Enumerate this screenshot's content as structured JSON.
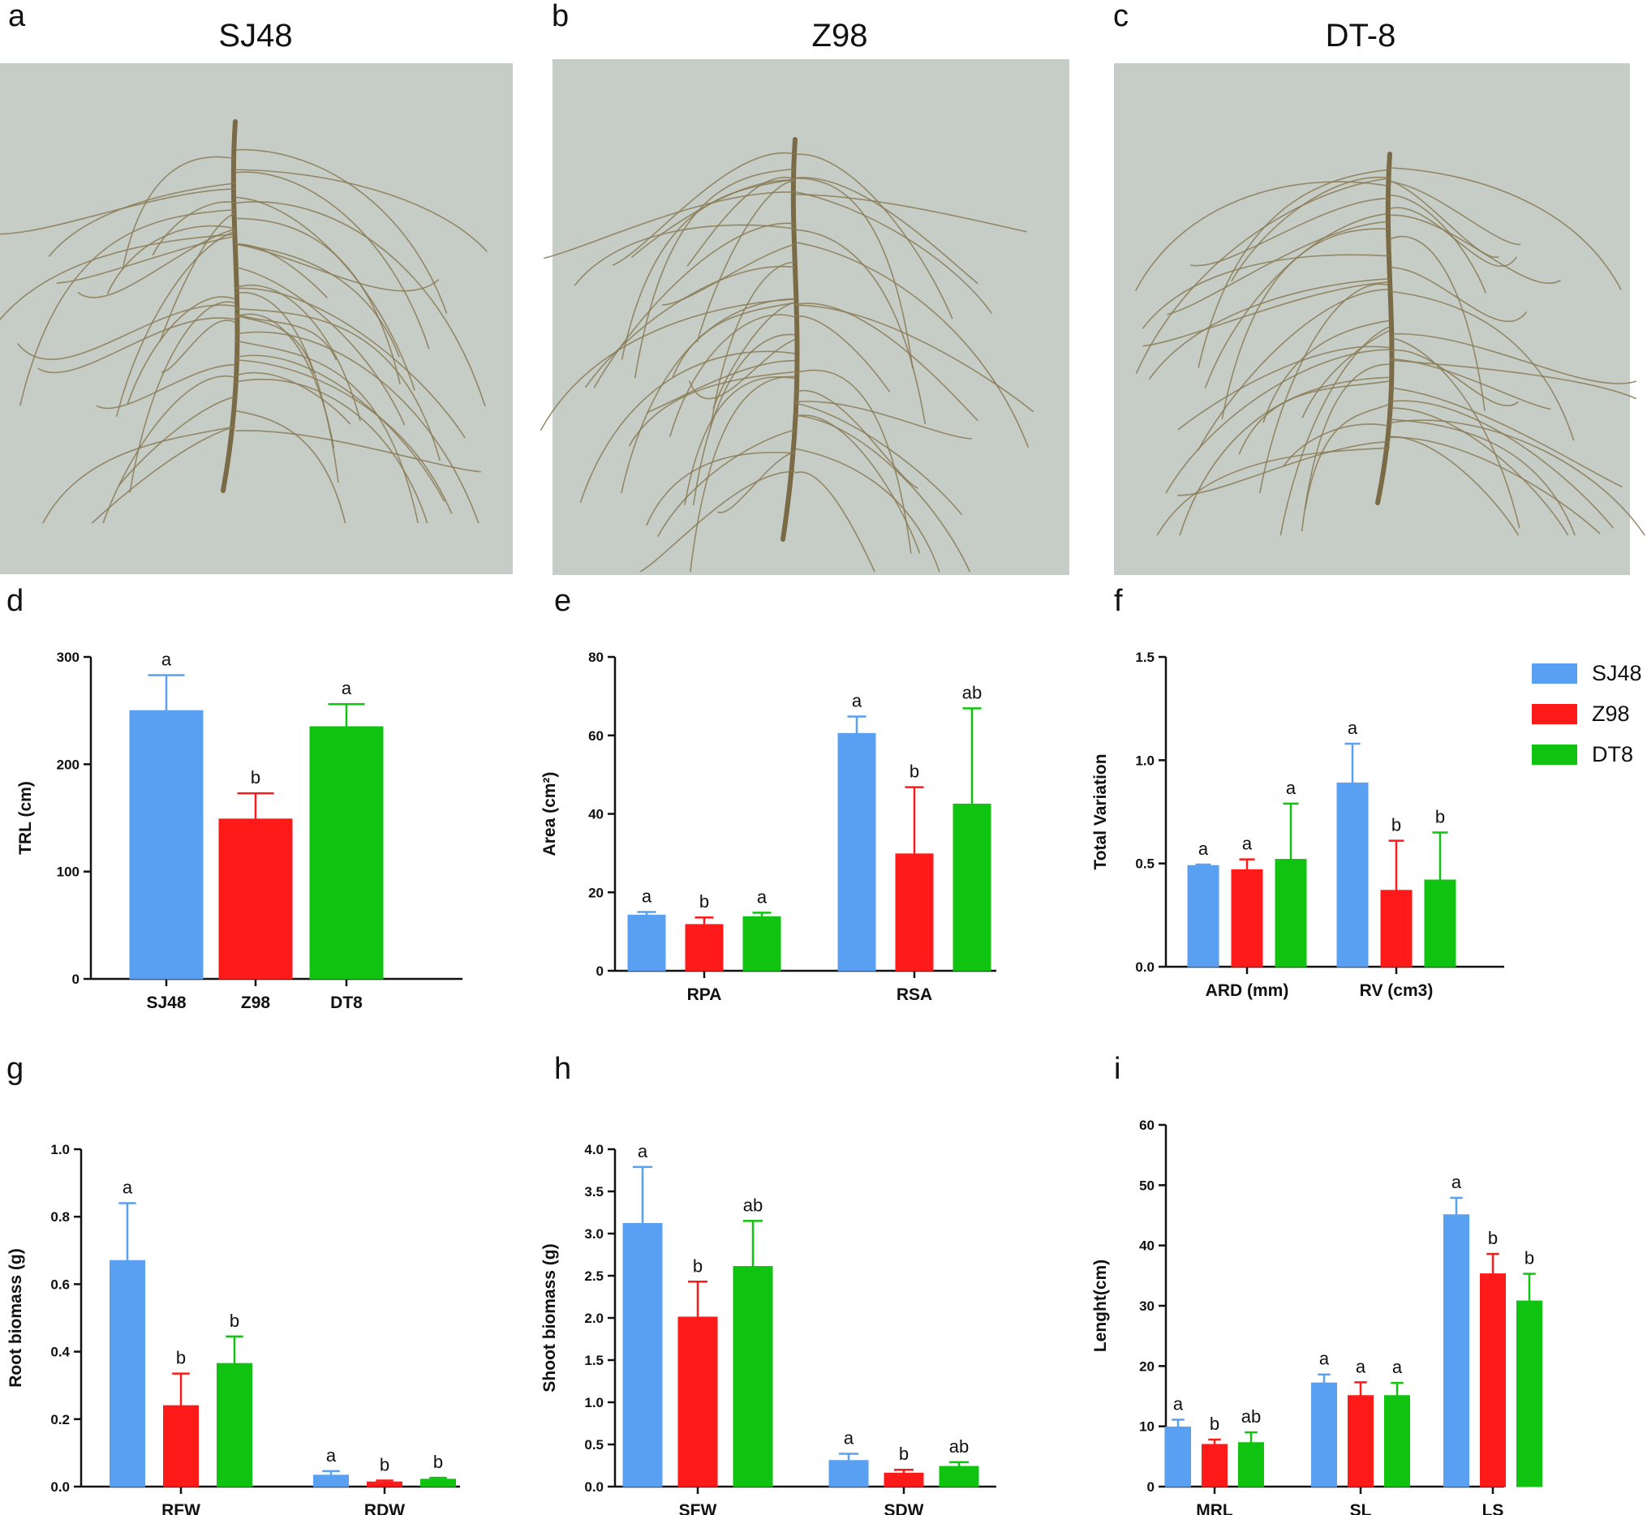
{
  "colors": {
    "SJ48": "#5aa0f2",
    "Z98": "#ff1a1a",
    "DT8": "#11c311",
    "photo_bg": "#c6cdc7",
    "root": "#8a7a55"
  },
  "photos": [
    {
      "letter": "a",
      "title": "SJ48"
    },
    {
      "letter": "b",
      "title": "Z98"
    },
    {
      "letter": "c",
      "title": "DT-8"
    }
  ],
  "legend": [
    "SJ48",
    "Z98",
    "DT8"
  ],
  "chart_data": [
    {
      "letter": "d",
      "type": "bar",
      "ylabel": "TRL (cm)",
      "ylim": [
        0,
        300
      ],
      "yticks": [
        0,
        100,
        200,
        300
      ],
      "categories": [
        "SJ48",
        "Z98",
        "DT8"
      ],
      "values": [
        250,
        149,
        235
      ],
      "errors": [
        33,
        24,
        21
      ],
      "sig": [
        "a",
        "b",
        "a"
      ]
    },
    {
      "letter": "e",
      "type": "bar",
      "ylabel": "Area (cm²)",
      "ylim": [
        0,
        80
      ],
      "yticks": [
        0,
        20,
        40,
        60,
        80
      ],
      "categories": [
        "RPA",
        "RSA"
      ],
      "series": [
        {
          "name": "SJ48",
          "values": [
            14.2,
            60.5
          ],
          "errors": [
            0.8,
            4.3
          ],
          "sig": [
            "a",
            "a"
          ]
        },
        {
          "name": "Z98",
          "values": [
            11.8,
            29.8
          ],
          "errors": [
            1.8,
            17.0
          ],
          "sig": [
            "b",
            "b"
          ]
        },
        {
          "name": "DT8",
          "values": [
            13.8,
            42.5
          ],
          "errors": [
            1.0,
            24.4
          ],
          "sig": [
            "a",
            "ab"
          ]
        }
      ]
    },
    {
      "letter": "f",
      "type": "bar",
      "ylabel": "Total Variation",
      "ylim": [
        0,
        1.5
      ],
      "yticks": [
        "0.0",
        "0.5",
        "1.0",
        "1.5"
      ],
      "categories": [
        "ARD (mm)",
        "RV (cm3)"
      ],
      "series": [
        {
          "name": "SJ48",
          "values": [
            0.49,
            0.89
          ],
          "errors": [
            0.005,
            0.19
          ],
          "sig": [
            "a",
            "a"
          ]
        },
        {
          "name": "Z98",
          "values": [
            0.47,
            0.37
          ],
          "errors": [
            0.05,
            0.24
          ],
          "sig": [
            "a",
            "b"
          ]
        },
        {
          "name": "DT8",
          "values": [
            0.52,
            0.42
          ],
          "errors": [
            0.27,
            0.23
          ],
          "sig": [
            "a",
            "b"
          ]
        }
      ]
    },
    {
      "letter": "g",
      "type": "bar",
      "ylabel": "Root biomass (g)",
      "ylim": [
        0,
        1.0
      ],
      "yticks": [
        "0.0",
        "0.2",
        "0.4",
        "0.6",
        "0.8",
        "1.0"
      ],
      "categories": [
        "RFW",
        "RDW"
      ],
      "series": [
        {
          "name": "SJ48",
          "values": [
            0.67,
            0.034
          ],
          "errors": [
            0.17,
            0.012
          ],
          "sig": [
            "a",
            "a"
          ]
        },
        {
          "name": "Z98",
          "values": [
            0.24,
            0.014
          ],
          "errors": [
            0.095,
            0.004
          ],
          "sig": [
            "b",
            "b"
          ]
        },
        {
          "name": "DT8",
          "values": [
            0.365,
            0.022
          ],
          "errors": [
            0.08,
            0.004
          ],
          "sig": [
            "b",
            "b"
          ]
        }
      ]
    },
    {
      "letter": "h",
      "type": "bar",
      "ylabel": "Shoot biomass (g)",
      "ylim": [
        0,
        4.0
      ],
      "yticks": [
        "0.0",
        "0.5",
        "1.0",
        "1.5",
        "2.0",
        "2.5",
        "3.0",
        "3.5",
        "4.0"
      ],
      "categories": [
        "SFW",
        "SDW"
      ],
      "series": [
        {
          "name": "SJ48",
          "values": [
            3.12,
            0.31
          ],
          "errors": [
            0.67,
            0.08
          ],
          "sig": [
            "a",
            "a"
          ]
        },
        {
          "name": "Z98",
          "values": [
            2.01,
            0.16
          ],
          "errors": [
            0.42,
            0.04
          ],
          "sig": [
            "b",
            "b"
          ]
        },
        {
          "name": "DT8",
          "values": [
            2.61,
            0.24
          ],
          "errors": [
            0.54,
            0.05
          ],
          "sig": [
            "ab",
            "ab"
          ]
        }
      ]
    },
    {
      "letter": "i",
      "type": "bar",
      "ylabel": "Lenght(cm)",
      "ylim": [
        0,
        60
      ],
      "yticks": [
        0,
        10,
        20,
        30,
        40,
        50,
        60
      ],
      "categories": [
        "MRL",
        "SL",
        "LS"
      ],
      "series": [
        {
          "name": "SJ48",
          "values": [
            9.9,
            17.2,
            45.1
          ],
          "errors": [
            1.2,
            1.4,
            2.8
          ],
          "sig": [
            "a",
            "a",
            "a"
          ]
        },
        {
          "name": "Z98",
          "values": [
            7.0,
            15.1,
            35.3
          ],
          "errors": [
            0.8,
            2.2,
            3.3
          ],
          "sig": [
            "b",
            "a",
            "b"
          ]
        },
        {
          "name": "DT8",
          "values": [
            7.3,
            15.1,
            30.8
          ],
          "errors": [
            1.7,
            2.1,
            4.5
          ],
          "sig": [
            "ab",
            "a",
            "b"
          ]
        }
      ]
    }
  ]
}
